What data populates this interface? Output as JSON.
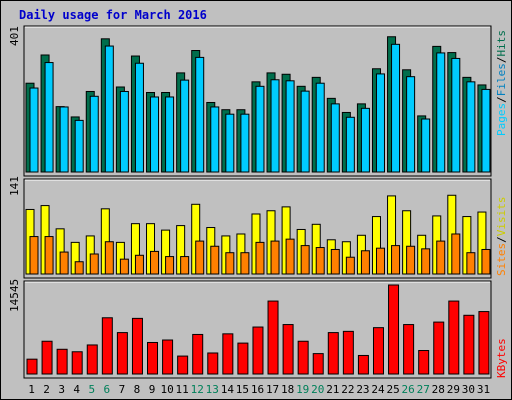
{
  "title": "Daily usage for March 2016",
  "colors": {
    "bg": "#c0c0c0",
    "hits": "#006e4c",
    "files": "#00ccff",
    "pages": "#006e4c",
    "visits": "#ffff00",
    "sites": "#ff8000",
    "kbytes": "#ff0000",
    "title": "#0000cc",
    "weekend": "#00805a"
  },
  "chart_data": [
    {
      "type": "bar",
      "name": "hits-files-pages",
      "ymax_label": "401",
      "ylim": [
        0,
        401
      ],
      "labels": {
        "pages": "Pages",
        "files": "Files",
        "hits": "Hits",
        "sep": "/"
      },
      "categories": [
        "1",
        "2",
        "3",
        "4",
        "5",
        "6",
        "7",
        "8",
        "9",
        "10",
        "11",
        "12",
        "13",
        "14",
        "15",
        "16",
        "17",
        "18",
        "19",
        "20",
        "21",
        "22",
        "23",
        "24",
        "25",
        "26",
        "27",
        "28",
        "29",
        "30",
        "31"
      ],
      "series": [
        {
          "name": "Hits",
          "values": [
            258,
            340,
            190,
            160,
            234,
            387,
            247,
            337,
            231,
            231,
            288,
            353,
            202,
            181,
            181,
            262,
            288,
            284,
            249,
            275,
            214,
            173,
            198,
            300,
            393,
            297,
            163,
            365,
            347,
            275,
            253
          ]
        },
        {
          "name": "Files",
          "values": [
            244,
            318,
            189,
            150,
            220,
            366,
            234,
            316,
            218,
            218,
            267,
            333,
            189,
            168,
            168,
            249,
            268,
            265,
            235,
            258,
            198,
            159,
            185,
            285,
            371,
            277,
            154,
            346,
            330,
            262,
            240
          ]
        }
      ]
    },
    {
      "type": "bar",
      "name": "visits-sites",
      "ymax_label": "141",
      "ylim": [
        0,
        141
      ],
      "labels": {
        "sites": "Sites",
        "visits": "Visits",
        "sep": "/"
      },
      "categories": [
        "1",
        "2",
        "3",
        "4",
        "5",
        "6",
        "7",
        "8",
        "9",
        "10",
        "11",
        "12",
        "13",
        "14",
        "15",
        "16",
        "17",
        "18",
        "19",
        "20",
        "21",
        "22",
        "23",
        "24",
        "25",
        "26",
        "27",
        "28",
        "29",
        "30",
        "31"
      ],
      "series": [
        {
          "name": "Visits",
          "values": [
            100,
            106,
            70,
            49,
            59,
            101,
            49,
            78,
            78,
            68,
            75,
            108,
            72,
            59,
            62,
            93,
            98,
            104,
            69,
            77,
            53,
            50,
            60,
            89,
            121,
            98,
            60,
            90,
            122,
            89,
            96
          ]
        },
        {
          "name": "Sites",
          "values": [
            58,
            58,
            34,
            19,
            31,
            50,
            23,
            29,
            35,
            27,
            27,
            51,
            43,
            33,
            33,
            49,
            51,
            54,
            44,
            41,
            38,
            26,
            36,
            40,
            44,
            43,
            39,
            51,
            62,
            33,
            38
          ]
        }
      ]
    },
    {
      "type": "bar",
      "name": "kbytes",
      "ymax_label": "14545",
      "ylim": [
        0,
        14545
      ],
      "labels": {
        "kbytes": "KBytes"
      },
      "categories": [
        "1",
        "2",
        "3",
        "4",
        "5",
        "6",
        "7",
        "8",
        "9",
        "10",
        "11",
        "12",
        "13",
        "14",
        "15",
        "16",
        "17",
        "18",
        "19",
        "20",
        "21",
        "22",
        "23",
        "24",
        "25",
        "26",
        "27",
        "28",
        "29",
        "30",
        "31"
      ],
      "series": [
        {
          "name": "KBytes",
          "values": [
            2424,
            5354,
            4040,
            3636,
            4747,
            9191,
            6767,
            9090,
            5151,
            5555,
            2929,
            6464,
            3434,
            6565,
            5050,
            7676,
            11919,
            8080,
            5353,
            3333,
            6767,
            6969,
            3030,
            7575,
            14545,
            8080,
            3838,
            8484,
            11919,
            9595,
            10202
          ]
        }
      ]
    }
  ],
  "weekend_days": [
    "5",
    "6",
    "12",
    "13",
    "19",
    "20",
    "26",
    "27"
  ]
}
